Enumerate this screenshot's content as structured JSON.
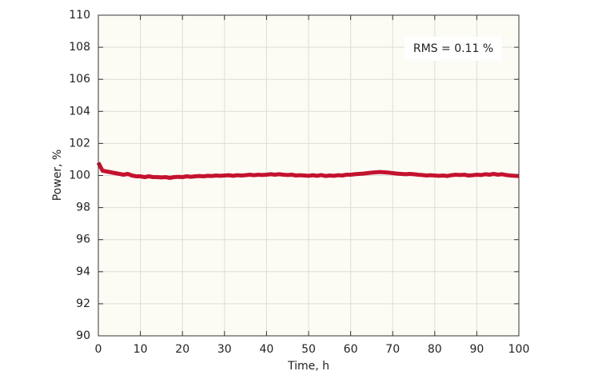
{
  "chart_data": {
    "type": "line",
    "xlabel": "Time, h",
    "ylabel": "Power, %",
    "annotation": "RMS = 0.11 %",
    "color": "#c4122f",
    "grid": true,
    "xlim": [
      0,
      100
    ],
    "xticks": [
      0,
      10,
      20,
      30,
      40,
      50,
      60,
      70,
      80,
      90,
      100
    ],
    "ylim": [
      90,
      110
    ],
    "yticks": [
      90,
      92,
      94,
      96,
      98,
      100,
      102,
      104,
      106,
      108,
      110
    ],
    "x": [
      0,
      1,
      2,
      3,
      4,
      5,
      6,
      7,
      8,
      9,
      10,
      11,
      12,
      13,
      14,
      15,
      16,
      17,
      18,
      19,
      20,
      21,
      22,
      23,
      24,
      25,
      26,
      27,
      28,
      29,
      30,
      31,
      32,
      33,
      34,
      35,
      36,
      37,
      38,
      39,
      40,
      41,
      42,
      43,
      44,
      45,
      46,
      47,
      48,
      49,
      50,
      51,
      52,
      53,
      54,
      55,
      56,
      57,
      58,
      59,
      60,
      61,
      62,
      63,
      64,
      65,
      66,
      67,
      68,
      69,
      70,
      71,
      72,
      73,
      74,
      75,
      76,
      77,
      78,
      79,
      80,
      81,
      82,
      83,
      84,
      85,
      86,
      87,
      88,
      89,
      90,
      91,
      92,
      93,
      94,
      95,
      96,
      97,
      98,
      99,
      100
    ],
    "values": [
      100.8,
      100.3,
      100.25,
      100.2,
      100.15,
      100.1,
      100.05,
      100.1,
      100.0,
      99.95,
      99.95,
      99.9,
      99.95,
      99.9,
      99.9,
      99.88,
      99.9,
      99.85,
      99.9,
      99.92,
      99.9,
      99.95,
      99.92,
      99.95,
      99.97,
      99.95,
      99.98,
      99.97,
      100.0,
      99.98,
      100.0,
      100.02,
      99.98,
      100.02,
      100.0,
      100.02,
      100.05,
      100.02,
      100.05,
      100.03,
      100.05,
      100.08,
      100.05,
      100.08,
      100.05,
      100.03,
      100.05,
      100.0,
      100.02,
      100.0,
      99.98,
      100.02,
      99.98,
      100.03,
      99.97,
      100.0,
      99.98,
      100.02,
      100.0,
      100.05,
      100.05,
      100.08,
      100.1,
      100.12,
      100.15,
      100.18,
      100.2,
      100.22,
      100.2,
      100.18,
      100.15,
      100.12,
      100.1,
      100.08,
      100.1,
      100.08,
      100.05,
      100.03,
      100.0,
      100.02,
      100.0,
      99.98,
      100.0,
      99.97,
      100.02,
      100.05,
      100.03,
      100.05,
      100.0,
      100.02,
      100.05,
      100.03,
      100.08,
      100.05,
      100.1,
      100.05,
      100.08,
      100.03,
      100.0,
      99.98,
      99.97
    ]
  }
}
